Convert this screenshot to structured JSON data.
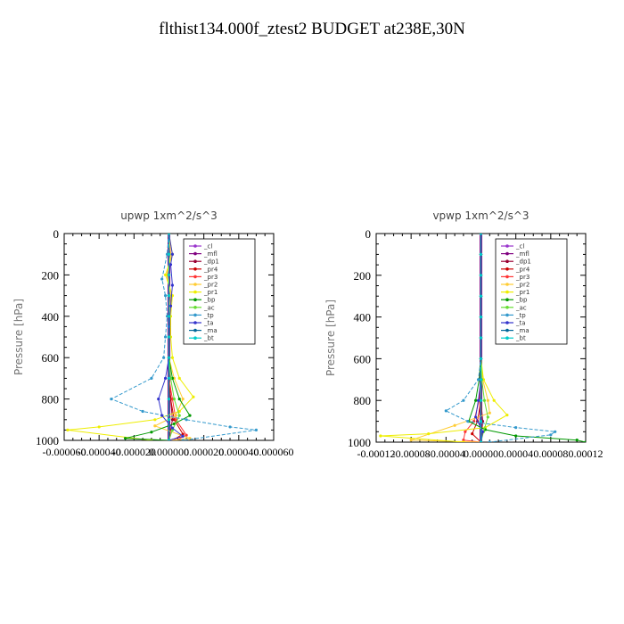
{
  "title": "flthist134.000f_ztest2  BUDGET at238E,30N",
  "chart_data": [
    {
      "type": "line",
      "title": "upwp   1xm^2/s^3",
      "ylabel": "Pressure [hPa]",
      "ylim": [
        1000,
        0
      ],
      "xlim": [
        -6e-05,
        6e-05
      ],
      "yticks": [
        "0",
        "200",
        "400",
        "600",
        "800",
        "1000"
      ],
      "xticks": [
        "-0.000060",
        "-0.000040",
        "-0.000020",
        "0.000000",
        "0.000020",
        "0.000040",
        "0.000060"
      ],
      "legend_position": "top-right",
      "series": [
        {
          "name": "_cl",
          "color": "#9933cc",
          "x": [
            0,
            0,
            0,
            0,
            0,
            0,
            0,
            0,
            0,
            0,
            0
          ],
          "y": [
            0,
            100,
            200,
            300,
            400,
            500,
            600,
            700,
            800,
            900,
            1000
          ]
        },
        {
          "name": "_mfl",
          "color": "#800080",
          "x": [
            0,
            0,
            0,
            0,
            0,
            0,
            0,
            0,
            0,
            0,
            0
          ],
          "y": [
            0,
            100,
            200,
            300,
            400,
            500,
            600,
            700,
            800,
            900,
            1000
          ]
        },
        {
          "name": "_dp1",
          "color": "#990033",
          "x": [
            0,
            0,
            0,
            0,
            0,
            0,
            0,
            0,
            1e-06,
            2e-06,
            0
          ],
          "y": [
            0,
            100,
            200,
            300,
            400,
            500,
            600,
            700,
            800,
            900,
            1000
          ]
        },
        {
          "name": "_pr4",
          "color": "#cc0000",
          "x": [
            0,
            0,
            0,
            0,
            0,
            0,
            0,
            0,
            1e-06,
            3e-06,
            8e-06,
            2e-06
          ],
          "y": [
            0,
            100,
            200,
            300,
            400,
            500,
            600,
            700,
            800,
            900,
            970,
            1000
          ]
        },
        {
          "name": "_pr3",
          "color": "#ff3333",
          "x": [
            0,
            0,
            0,
            0,
            0,
            0,
            0,
            0,
            2e-06,
            4e-06,
            1e-05,
            4e-06
          ],
          "y": [
            0,
            100,
            200,
            300,
            400,
            500,
            600,
            700,
            800,
            900,
            975,
            1000
          ]
        },
        {
          "name": "_pr2",
          "color": "#ffcc33",
          "x": [
            0,
            1e-06,
            -1e-06,
            1e-06,
            0,
            0,
            0,
            3e-06,
            8e-06,
            4e-06,
            -8e-06,
            1.2e-05,
            2e-06
          ],
          "y": [
            0,
            100,
            200,
            300,
            400,
            500,
            600,
            700,
            800,
            880,
            930,
            990,
            1000
          ]
        },
        {
          "name": "_pr1",
          "color": "#eeee00",
          "x": [
            0,
            2e-06,
            -2e-06,
            2e-06,
            1e-06,
            1e-06,
            2e-06,
            6e-06,
            1.4e-05,
            6e-06,
            -8e-06,
            -4e-05,
            -5.8e-05,
            -1e-05
          ],
          "y": [
            0,
            100,
            200,
            300,
            400,
            500,
            600,
            700,
            790,
            860,
            900,
            935,
            950,
            1000
          ]
        },
        {
          "name": "_bp",
          "color": "#009900",
          "x": [
            0,
            0,
            0,
            0,
            0,
            0,
            0,
            2e-06,
            6e-06,
            1.2e-05,
            3e-06,
            -1e-05,
            -2.5e-05,
            0
          ],
          "y": [
            0,
            100,
            200,
            300,
            400,
            500,
            600,
            700,
            800,
            880,
            920,
            960,
            990,
            1000
          ]
        },
        {
          "name": "_ac",
          "color": "#66dd33",
          "x": [
            0,
            0,
            0,
            0,
            0,
            0,
            0,
            1e-06,
            3e-06,
            6e-06,
            2e-06,
            0
          ],
          "y": [
            0,
            100,
            200,
            300,
            400,
            500,
            600,
            700,
            800,
            880,
            950,
            1000
          ]
        },
        {
          "name": "_tp",
          "color": "#3399cc",
          "x": [
            0,
            -1e-06,
            -4e-06,
            -2e-06,
            -1e-06,
            -2e-06,
            -3e-06,
            -1e-05,
            -3.3e-05,
            -1.5e-05,
            1e-05,
            3.5e-05,
            5e-05,
            8e-06
          ],
          "y": [
            0,
            100,
            220,
            300,
            400,
            500,
            600,
            700,
            800,
            860,
            900,
            935,
            950,
            1000
          ]
        },
        {
          "name": "_ta",
          "color": "#3333cc",
          "x": [
            0,
            2e-06,
            1e-06,
            2e-06,
            1e-06,
            0,
            0,
            -2e-06,
            -6e-06,
            -4e-06,
            2e-06,
            8e-06,
            0
          ],
          "y": [
            0,
            100,
            150,
            250,
            350,
            450,
            600,
            700,
            800,
            880,
            940,
            980,
            1000
          ]
        },
        {
          "name": "_ma",
          "color": "#006699",
          "x": [
            0,
            0,
            0,
            0,
            0,
            0,
            0,
            0,
            0,
            0,
            0
          ],
          "y": [
            0,
            100,
            200,
            300,
            400,
            500,
            600,
            700,
            800,
            900,
            1000
          ]
        },
        {
          "name": "_bt",
          "color": "#00cccc",
          "x": [
            0,
            0,
            0,
            0,
            0,
            0,
            0,
            0,
            0,
            0,
            0
          ],
          "y": [
            0,
            100,
            200,
            300,
            400,
            500,
            600,
            700,
            800,
            900,
            1000
          ]
        }
      ]
    },
    {
      "type": "line",
      "title": "vpwp   1xm^2/s^3",
      "ylabel": "Pressure [hPa]",
      "ylim": [
        1000,
        0
      ],
      "xlim": [
        -0.00012,
        0.00012
      ],
      "yticks": [
        "0",
        "200",
        "400",
        "600",
        "800",
        "1000"
      ],
      "xticks": [
        "-0.00012",
        "-0.00008",
        "-0.00004",
        "0.00000",
        "0.00004",
        "0.00008",
        "0.00012"
      ],
      "legend_position": "top-right",
      "series": [
        {
          "name": "_cl",
          "color": "#9933cc",
          "x": [
            0,
            0,
            0,
            0,
            0,
            0,
            0,
            0,
            0,
            0,
            0
          ],
          "y": [
            0,
            100,
            200,
            300,
            400,
            500,
            600,
            700,
            800,
            900,
            1000
          ]
        },
        {
          "name": "_mfl",
          "color": "#800080",
          "x": [
            0,
            0,
            0,
            0,
            0,
            0,
            0,
            0,
            0,
            0,
            0
          ],
          "y": [
            0,
            100,
            200,
            300,
            400,
            500,
            600,
            700,
            800,
            900,
            1000
          ]
        },
        {
          "name": "_dp1",
          "color": "#990033",
          "x": [
            0,
            0,
            0,
            0,
            0,
            0,
            0,
            0,
            0,
            2e-06,
            0
          ],
          "y": [
            0,
            100,
            200,
            300,
            400,
            500,
            600,
            700,
            800,
            900,
            1000
          ]
        },
        {
          "name": "_pr4",
          "color": "#cc0000",
          "x": [
            0,
            0,
            0,
            0,
            0,
            0,
            0,
            0,
            0,
            -4e-06,
            -1e-05,
            0
          ],
          "y": [
            0,
            100,
            200,
            300,
            400,
            500,
            600,
            700,
            800,
            900,
            960,
            1000
          ]
        },
        {
          "name": "_pr3",
          "color": "#ff3333",
          "x": [
            0,
            0,
            0,
            0,
            0,
            0,
            0,
            0,
            -2e-06,
            -8e-06,
            -1.8e-05,
            -2e-05,
            0
          ],
          "y": [
            0,
            100,
            200,
            300,
            400,
            500,
            600,
            700,
            800,
            900,
            950,
            990,
            1000
          ]
        },
        {
          "name": "_pr2",
          "color": "#ffcc33",
          "x": [
            0,
            0,
            0,
            0,
            0,
            0,
            0,
            2e-06,
            8e-06,
            1e-05,
            -3e-05,
            -8e-05,
            0
          ],
          "y": [
            0,
            100,
            200,
            300,
            400,
            500,
            600,
            700,
            800,
            860,
            920,
            990,
            1000
          ]
        },
        {
          "name": "_pr1",
          "color": "#eeee00",
          "x": [
            0,
            0,
            0,
            0,
            0,
            0,
            0,
            3e-06,
            1.5e-05,
            3e-05,
            5e-06,
            -6e-05,
            -0.000115,
            -2e-05
          ],
          "y": [
            0,
            100,
            200,
            300,
            400,
            500,
            600,
            700,
            800,
            870,
            930,
            960,
            970,
            1000
          ]
        },
        {
          "name": "_bp",
          "color": "#009900",
          "x": [
            0,
            0,
            0,
            0,
            0,
            0,
            0,
            -2e-06,
            -6e-06,
            -1.4e-05,
            5e-06,
            4e-05,
            0.00011,
            0.00012
          ],
          "y": [
            0,
            100,
            200,
            300,
            400,
            500,
            600,
            700,
            800,
            900,
            940,
            970,
            990,
            1000
          ]
        },
        {
          "name": "_ac",
          "color": "#66dd33",
          "x": [
            0,
            0,
            0,
            0,
            0,
            0,
            0,
            1e-06,
            4e-06,
            8e-06,
            3e-06,
            0
          ],
          "y": [
            0,
            100,
            200,
            300,
            400,
            500,
            600,
            700,
            800,
            880,
            950,
            1000
          ]
        },
        {
          "name": "_tp",
          "color": "#3399cc",
          "x": [
            0,
            0,
            0,
            0,
            0,
            0,
            0,
            -3e-06,
            -2e-05,
            -4e-05,
            -1.5e-05,
            4e-05,
            8.5e-05,
            8e-05,
            1e-05
          ],
          "y": [
            0,
            100,
            200,
            300,
            400,
            500,
            600,
            700,
            800,
            850,
            900,
            930,
            950,
            965,
            1000
          ]
        },
        {
          "name": "_ta",
          "color": "#3333cc",
          "x": [
            0,
            0,
            0,
            0,
            0,
            0,
            0,
            0,
            -3e-06,
            -6e-06,
            2e-06,
            0
          ],
          "y": [
            0,
            100,
            200,
            300,
            400,
            500,
            600,
            700,
            800,
            880,
            950,
            1000
          ]
        },
        {
          "name": "_ma",
          "color": "#006699",
          "x": [
            0,
            0,
            0,
            0,
            0,
            0,
            0,
            0,
            0,
            0,
            0
          ],
          "y": [
            0,
            100,
            200,
            300,
            400,
            500,
            600,
            700,
            800,
            900,
            1000
          ]
        },
        {
          "name": "_bt",
          "color": "#00cccc",
          "x": [
            0,
            0,
            0,
            0,
            0,
            0,
            0,
            0,
            0,
            0,
            0
          ],
          "y": [
            0,
            100,
            200,
            300,
            400,
            500,
            600,
            700,
            800,
            900,
            1000
          ]
        }
      ]
    }
  ]
}
